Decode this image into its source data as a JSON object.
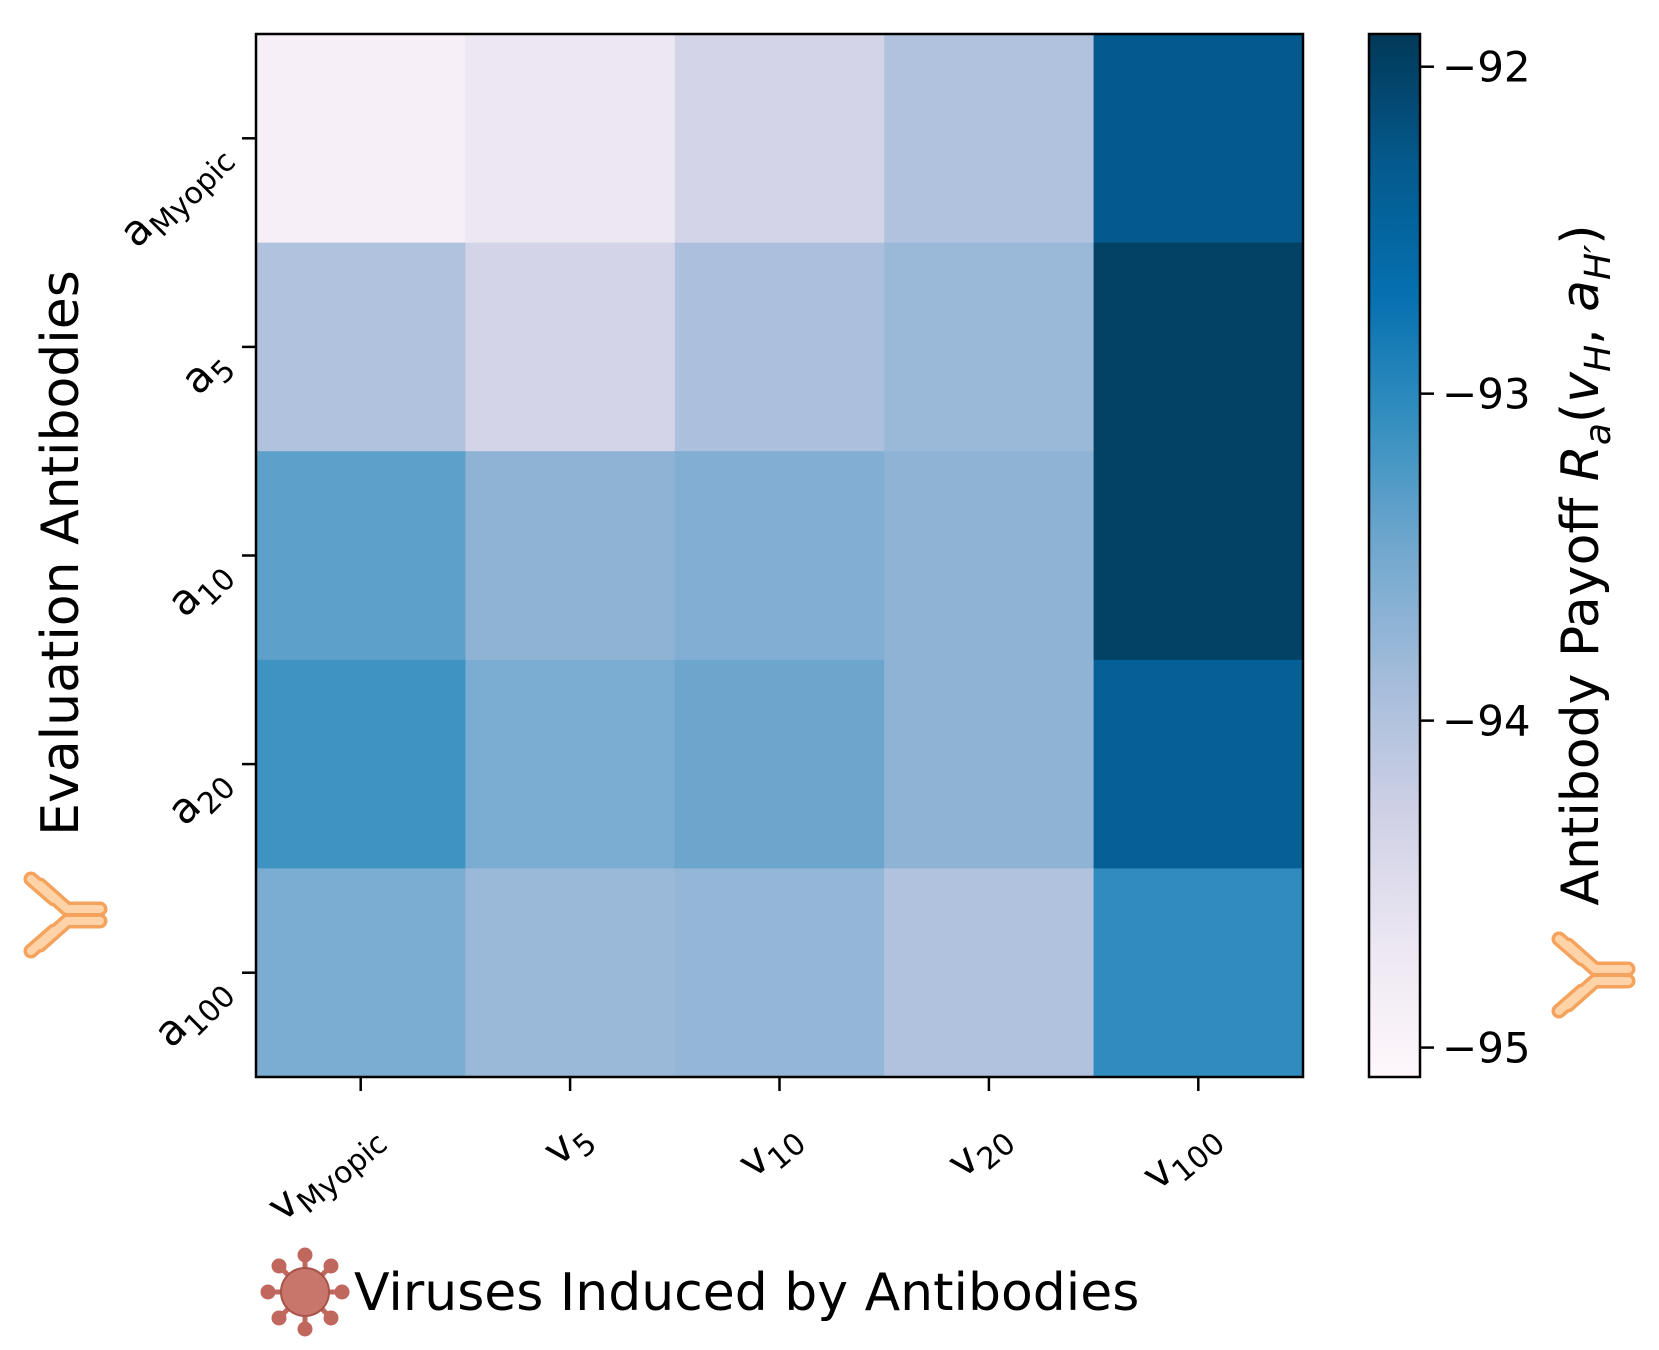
{
  "chart_data": {
    "type": "heatmap",
    "x_label": "Viruses Induced by Antibodies",
    "y_label": "Evaluation Antibodies",
    "colorbar_label": [
      {
        "text": "Antibody Payoff "
      },
      {
        "text": "R",
        "italic": true
      },
      {
        "text": "a",
        "italic": true,
        "sub": true
      },
      {
        "text": "("
      },
      {
        "text": "v",
        "italic": true
      },
      {
        "text": "H",
        "italic": true,
        "sub": true
      },
      {
        "text": ", "
      },
      {
        "text": "a",
        "italic": true
      },
      {
        "text": "H′",
        "italic": true,
        "sub": true
      },
      {
        "text": ")"
      }
    ],
    "x_categories": [
      {
        "base": "v",
        "sub": "Myopic"
      },
      {
        "base": "v",
        "sub": "5"
      },
      {
        "base": "v",
        "sub": "10"
      },
      {
        "base": "v",
        "sub": "20"
      },
      {
        "base": "v",
        "sub": "100"
      }
    ],
    "y_categories": [
      {
        "base": "a",
        "sub": "Myopic"
      },
      {
        "base": "a",
        "sub": "5"
      },
      {
        "base": "a",
        "sub": "10"
      },
      {
        "base": "a",
        "sub": "20"
      },
      {
        "base": "a",
        "sub": "100"
      }
    ],
    "values": [
      [
        -94.9,
        -94.7,
        -94.35,
        -94.0,
        -92.3
      ],
      [
        -94.0,
        -94.35,
        -93.95,
        -93.8,
        -92.0
      ],
      [
        -93.35,
        -93.7,
        -93.6,
        -93.7,
        -92.0
      ],
      [
        -93.15,
        -93.55,
        -93.45,
        -93.7,
        -92.4
      ],
      [
        -93.55,
        -93.8,
        -93.75,
        -94.0,
        -93.05
      ]
    ],
    "colormap": [
      "#fff7fb",
      "#ece7f2",
      "#d0d1e6",
      "#a6bddb",
      "#74a9cf",
      "#3690c0",
      "#0570b0",
      "#045a8d",
      "#023858"
    ],
    "zlim": [
      -95.09,
      -91.9
    ],
    "zticks": [
      {
        "value": -92,
        "label": "−92"
      },
      {
        "value": -93,
        "label": "−93"
      },
      {
        "value": -94,
        "label": "−94"
      },
      {
        "value": -95,
        "label": "−95"
      }
    ]
  }
}
